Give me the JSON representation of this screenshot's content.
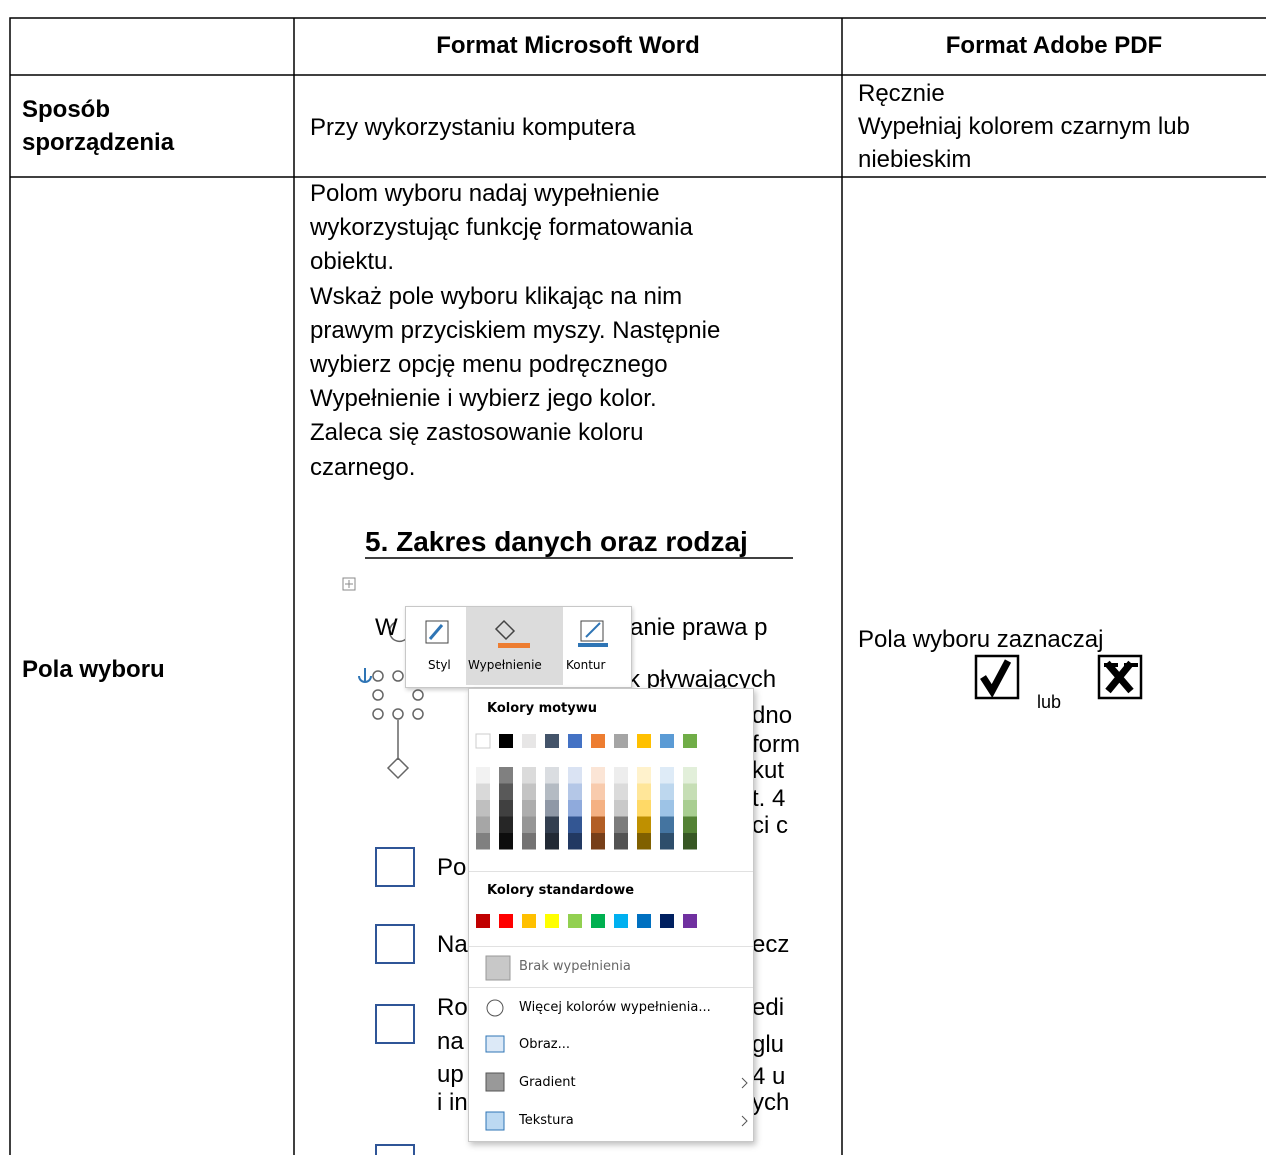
{
  "table": {
    "header": [
      "Format Microsoft Word",
      "Format Adobe PDF"
    ],
    "rows": [
      {
        "label": [
          "Sposób",
          "sporządzenia"
        ],
        "word": [
          "Przy wykorzystaniu komputera"
        ],
        "pdf": [
          "Ręcznie",
          "Wypełniaj kolorem czarnym lub",
          "niebieskim"
        ]
      },
      {
        "label": [
          "Pola wyboru"
        ],
        "word": [
          "Polom wyboru nadaj wypełnienie",
          "wykorzystując funkcję formatowania",
          "obiektu.",
          "Wskaż pole wyboru klikając na nim",
          "prawym przyciskiem myszy. Następnie",
          "wybierz opcję menu podręcznego",
          "Wypełnienie i wybierz jego kolor.",
          "Zaleca się zastosowanie koloru",
          "czarnego."
        ],
        "pdf": [
          "Pola wyboru zaznaczaj",
          "lub"
        ]
      }
    ]
  },
  "screenshot": {
    "heading": "5. Zakres danych oraz rodzaj",
    "ribbon": [
      "Styl",
      "Wypełnienie",
      "Kontur"
    ],
    "theme_title": "Kolory motywu",
    "standard_title": "Kolory standardowe",
    "items": [
      "Brak wypełnienia",
      "Więcej kolorów wypełnienia...",
      "Obraz...",
      "Gradient",
      "Tekstura"
    ],
    "fragments": [
      "W",
      "anie prawa p",
      "k pływających",
      "dno",
      "form",
      "kut",
      "t. 4",
      "ci c",
      "Po",
      "Na",
      "ecz",
      "Ro",
      "edi",
      "na",
      "glu",
      "up",
      "4 u",
      "i in",
      "ych"
    ]
  }
}
